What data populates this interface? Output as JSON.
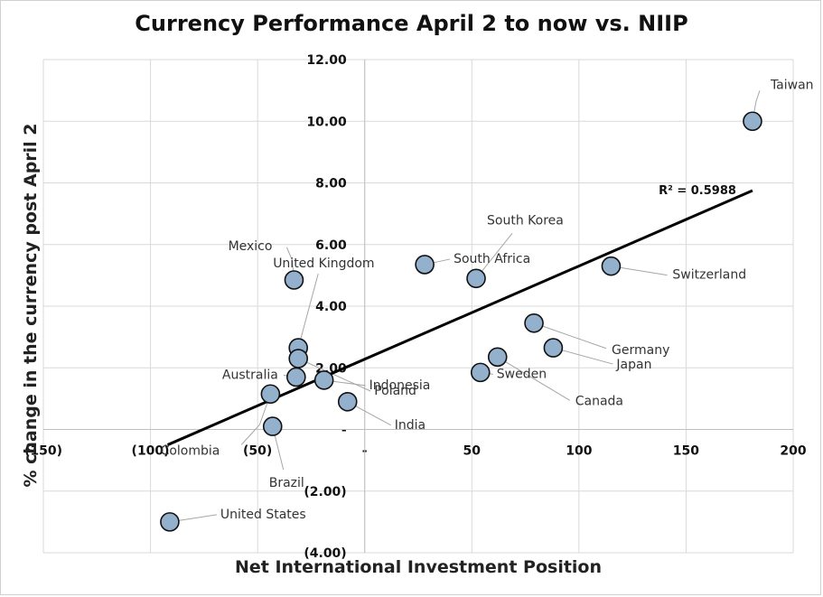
{
  "chart_data": {
    "type": "scatter",
    "title": "Currency Performance April 2 to now vs. NIIP",
    "xlabel": "Net International Investment Position",
    "ylabel": "% change in the currency post April 2",
    "xlim": [
      -150,
      200
    ],
    "ylim": [
      -4,
      12
    ],
    "grid": true,
    "x_ticks": [
      {
        "value": -150,
        "label": "(150)"
      },
      {
        "value": -100,
        "label": "(100)"
      },
      {
        "value": -50,
        "label": "(50)"
      },
      {
        "value": 0,
        "label": "-"
      },
      {
        "value": 50,
        "label": "50"
      },
      {
        "value": 100,
        "label": "100"
      },
      {
        "value": 150,
        "label": "150"
      },
      {
        "value": 200,
        "label": "200"
      }
    ],
    "y_ticks": [
      {
        "value": 12,
        "label": "12.00"
      },
      {
        "value": 10,
        "label": "10.00"
      },
      {
        "value": 8,
        "label": "8.00"
      },
      {
        "value": 6,
        "label": "6.00"
      },
      {
        "value": 4,
        "label": "4.00"
      },
      {
        "value": 2,
        "label": "2.00"
      },
      {
        "value": 0,
        "label": "-"
      },
      {
        "value": -2,
        "label": "(2.00)"
      },
      {
        "value": -4,
        "label": "(4.00)"
      }
    ],
    "points": [
      {
        "label": "Taiwan",
        "x": 181,
        "y": 10.0
      },
      {
        "label": "Switzerland",
        "x": 115,
        "y": 5.3
      },
      {
        "label": "South Korea",
        "x": 52,
        "y": 4.9
      },
      {
        "label": "South Africa",
        "x": 28,
        "y": 5.35
      },
      {
        "label": "Germany",
        "x": 79,
        "y": 3.45
      },
      {
        "label": "Japan",
        "x": 88,
        "y": 2.65
      },
      {
        "label": "Canada",
        "x": 62,
        "y": 2.35
      },
      {
        "label": "Sweden",
        "x": 54,
        "y": 1.85
      },
      {
        "label": "Mexico",
        "x": -33,
        "y": 4.85
      },
      {
        "label": "United Kingdom",
        "x": -31,
        "y": 2.65
      },
      {
        "label": "Indonesia",
        "x": -19,
        "y": 1.6
      },
      {
        "label": "Poland",
        "x": -31,
        "y": 2.3
      },
      {
        "label": "India",
        "x": -8,
        "y": 0.9
      },
      {
        "label": "Australia",
        "x": -32,
        "y": 1.7
      },
      {
        "label": "Colombia",
        "x": -44,
        "y": 1.15
      },
      {
        "label": "Brazil",
        "x": -43,
        "y": 0.1
      },
      {
        "label": "United States",
        "x": -91,
        "y": -3.0
      }
    ],
    "trendline": {
      "x1": -92,
      "y1": -0.5,
      "x2": 181,
      "y2": 7.75,
      "label": "R² = 0.5988"
    },
    "colors": {
      "marker_fill": "#93B0CD",
      "marker_stroke": "#111111",
      "trendline": "#000000",
      "grid": "#d9d9d9",
      "leader": "#a6a6a6"
    }
  }
}
